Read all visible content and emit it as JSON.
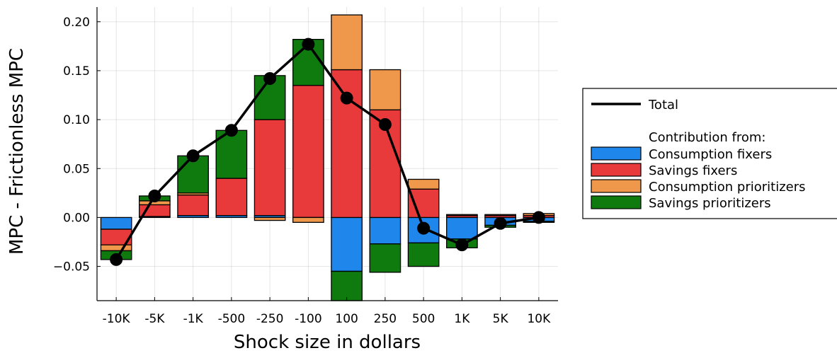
{
  "chart_data": {
    "type": "bar",
    "stacked": true,
    "title": "",
    "xlabel": "Shock size in dollars",
    "ylabel": "MPC - Frictionless MPC",
    "categories": [
      "-10K",
      "-5K",
      "-1K",
      "-500",
      "-250",
      "-100",
      "100",
      "250",
      "500",
      "1K",
      "5K",
      "10K"
    ],
    "ylim": [
      -0.085,
      0.215
    ],
    "yticks": [
      -0.05,
      0.0,
      0.05,
      0.1,
      0.15,
      0.2
    ],
    "ytick_labels": [
      "−0.05",
      "0.00",
      "0.05",
      "0.10",
      "0.15",
      "0.20"
    ],
    "grid": true,
    "legend_position": "right",
    "legend_header": "Contribution from:",
    "line_series": {
      "name": "Total",
      "color": "#000000",
      "values": [
        -0.043,
        0.022,
        0.063,
        0.089,
        0.142,
        0.177,
        0.122,
        0.095,
        -0.011,
        -0.028,
        -0.006,
        0.0
      ]
    },
    "series": [
      {
        "name": "Consumption fixers",
        "color": "#1f86ec",
        "values": [
          -0.012,
          0.001,
          0.002,
          0.002,
          0.002,
          0.0,
          -0.055,
          -0.027,
          -0.026,
          -0.022,
          -0.008,
          -0.004
        ]
      },
      {
        "name": "Savings fixers",
        "color": "#e8393b",
        "values": [
          -0.016,
          0.012,
          0.021,
          0.038,
          0.098,
          0.135,
          0.151,
          0.11,
          0.029,
          0.002,
          0.002,
          0.002
        ]
      },
      {
        "name": "Consumption prioritizers",
        "color": "#ef984b",
        "values": [
          -0.006,
          0.004,
          0.002,
          0.0,
          -0.003,
          -0.005,
          0.056,
          0.041,
          0.01,
          0.001,
          0.001,
          0.002
        ]
      },
      {
        "name": "Savings prioritizers",
        "color": "#0f7b0f",
        "values": [
          -0.009,
          0.005,
          0.038,
          0.049,
          0.045,
          0.047,
          -0.03,
          -0.029,
          -0.024,
          -0.009,
          -0.002,
          -0.001
        ]
      }
    ]
  }
}
